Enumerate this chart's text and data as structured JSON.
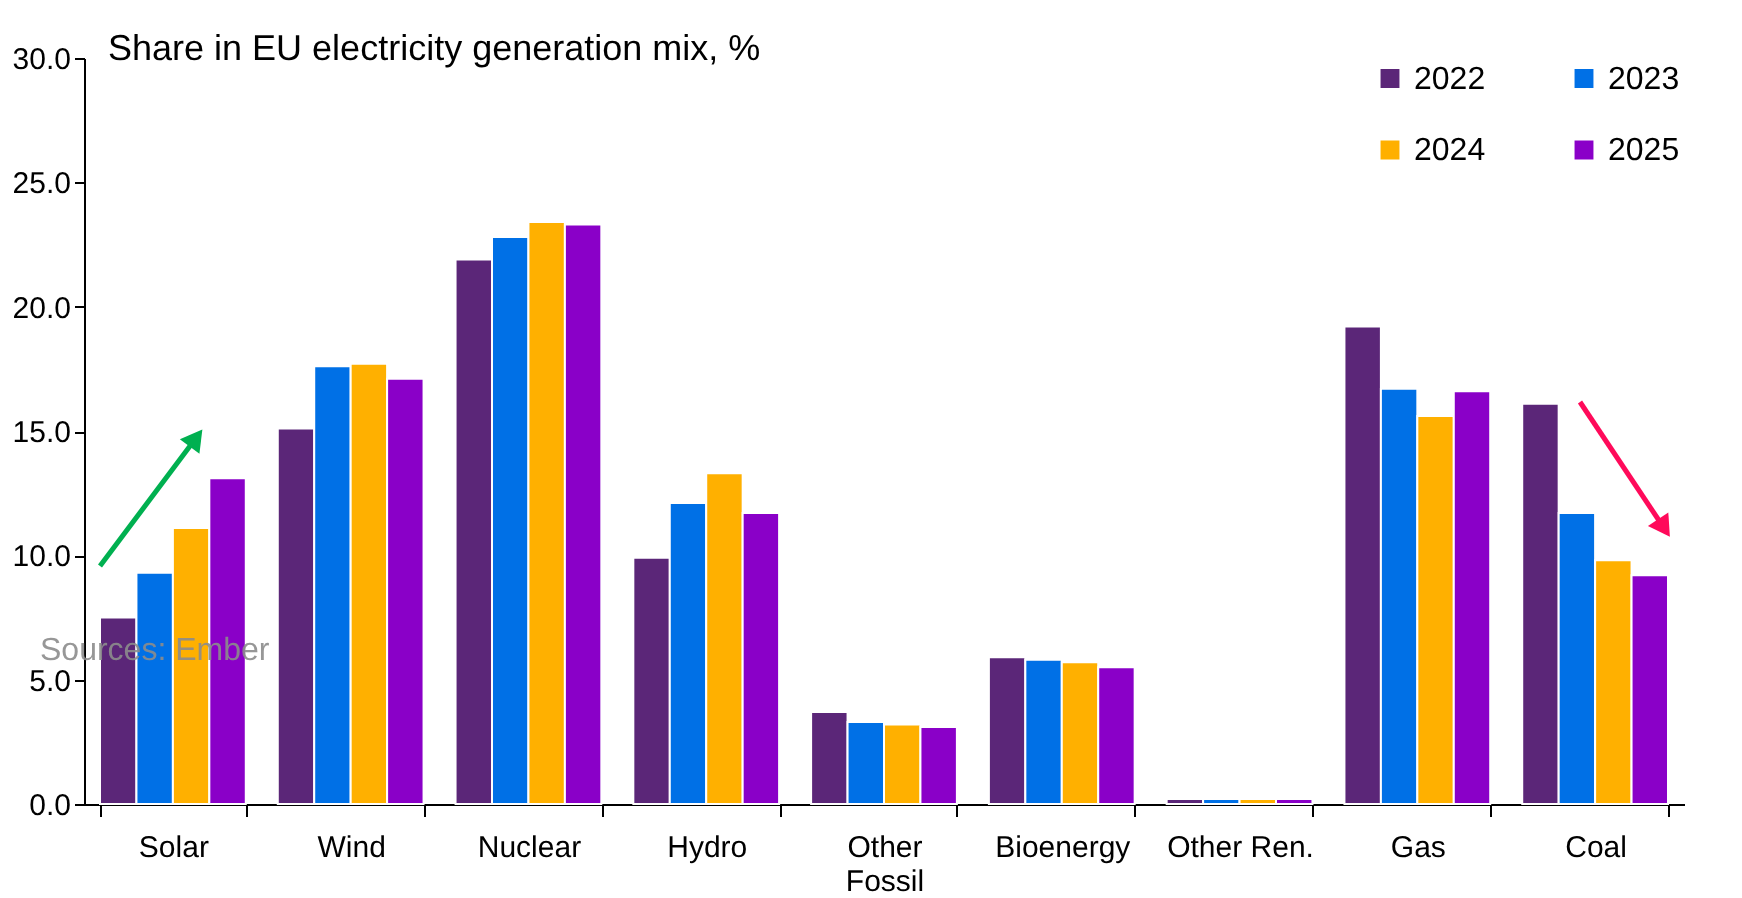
{
  "chart_data": {
    "type": "bar",
    "title": "Share in EU electricity generation mix, %",
    "categories": [
      "Solar",
      "Wind",
      "Nuclear",
      "Hydro",
      "Other\nFossil",
      "Bioenergy",
      "Other Ren.",
      "Gas",
      "Coal"
    ],
    "series": [
      {
        "name": "2022",
        "color": "#5b2678",
        "values": [
          7.5,
          15.1,
          21.9,
          9.9,
          3.7,
          5.9,
          0.2,
          19.2,
          16.1
        ]
      },
      {
        "name": "2023",
        "color": "#0070e6",
        "values": [
          9.3,
          17.6,
          22.8,
          12.1,
          3.3,
          5.8,
          0.2,
          16.7,
          11.7
        ]
      },
      {
        "name": "2024",
        "color": "#ffb000",
        "values": [
          11.1,
          17.7,
          23.4,
          13.3,
          3.2,
          5.7,
          0.2,
          15.6,
          9.8
        ]
      },
      {
        "name": "2025",
        "color": "#8a00c8",
        "values": [
          13.1,
          17.1,
          23.3,
          11.7,
          3.1,
          5.5,
          0.2,
          16.6,
          9.2
        ]
      }
    ],
    "ylim": [
      0,
      30
    ],
    "yticks": [
      {
        "value": 0,
        "label": "0.0"
      },
      {
        "value": 5,
        "label": "5.0"
      },
      {
        "value": 10,
        "label": "10.0"
      },
      {
        "value": 15,
        "label": "15.0"
      },
      {
        "value": 20,
        "label": "20.0"
      },
      {
        "value": 25,
        "label": "25.0"
      },
      {
        "value": 30,
        "label": "30.0"
      }
    ],
    "legend": "top right",
    "grid": false,
    "annotations": [
      "Sources: Ember"
    ]
  }
}
